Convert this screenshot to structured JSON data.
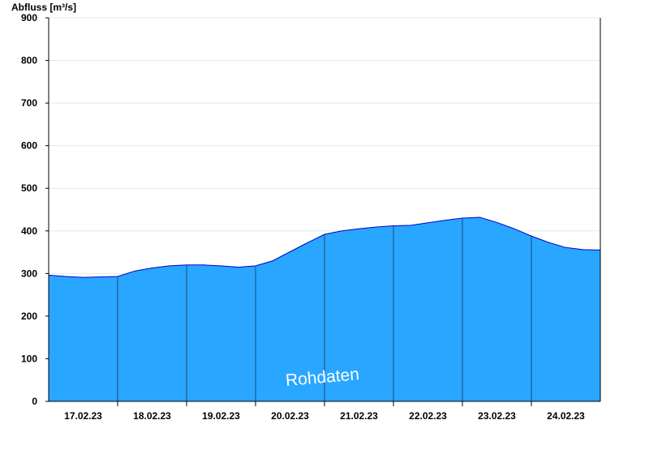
{
  "chart_data": {
    "type": "area",
    "title": "",
    "xlabel": "",
    "ylabel": "Abfluss [m³/s]",
    "ylim": [
      0,
      900
    ],
    "y_ticks": [
      0,
      100,
      200,
      300,
      400,
      500,
      600,
      700,
      800,
      900
    ],
    "x_range": [
      "2023-02-16T12:00",
      "2023-02-24T12:00"
    ],
    "x_tick_labels": [
      "17.02.23",
      "18.02.23",
      "19.02.23",
      "20.02.23",
      "21.02.23",
      "22.02.23",
      "23.02.23",
      "24.02.23"
    ],
    "grid": true,
    "legend": "none",
    "annotation": "Rohdaten",
    "series": [
      {
        "values_x": [
          "2023-02-16T12:00",
          "2023-02-16T18:00",
          "2023-02-17T00:00",
          "2023-02-17T06:00",
          "2023-02-17T12:00",
          "2023-02-17T18:00",
          "2023-02-18T00:00",
          "2023-02-18T06:00",
          "2023-02-18T12:00",
          "2023-02-18T18:00",
          "2023-02-19T00:00",
          "2023-02-19T06:00",
          "2023-02-19T12:00",
          "2023-02-19T18:00",
          "2023-02-20T00:00",
          "2023-02-20T06:00",
          "2023-02-20T12:00",
          "2023-02-20T18:00",
          "2023-02-21T00:00",
          "2023-02-21T06:00",
          "2023-02-21T12:00",
          "2023-02-21T18:00",
          "2023-02-22T00:00",
          "2023-02-22T06:00",
          "2023-02-22T12:00",
          "2023-02-22T18:00",
          "2023-02-23T00:00",
          "2023-02-23T06:00",
          "2023-02-23T12:00",
          "2023-02-23T18:00",
          "2023-02-24T00:00",
          "2023-02-24T06:00",
          "2023-02-24T12:00"
        ],
        "values": [
          296,
          293,
          291,
          292,
          293,
          306,
          313,
          318,
          320,
          320,
          318,
          315,
          318,
          330,
          351,
          372,
          392,
          400,
          405,
          409,
          412,
          413,
          419,
          425,
          430,
          432,
          420,
          405,
          388,
          373,
          361,
          356,
          355
        ]
      }
    ],
    "colors": {
      "fill": "#29a6ff",
      "line": "#0000cc",
      "grid": "#e6e6e6",
      "axis": "#000000",
      "day_line": "#1a4a73"
    }
  }
}
